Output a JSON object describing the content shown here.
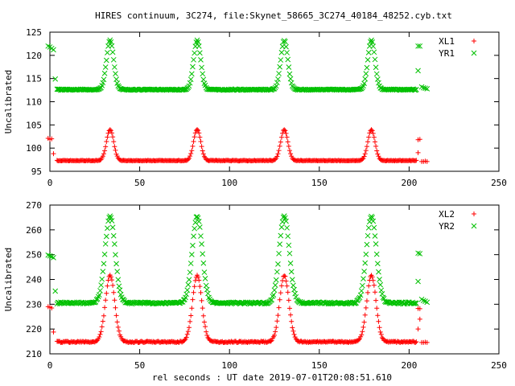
{
  "chart_data": {
    "title": "HIRES continuum, 3C274, file:Skynet_58665_3C274_40184_48252.cyb.txt",
    "xlabel": "rel seconds : UT date 2019-07-01T20:08:51.610",
    "panels": [
      {
        "type": "scatter",
        "ylabel": "Uncalibrated",
        "xlim": [
          0,
          250
        ],
        "ylim": [
          95,
          125
        ],
        "xticks": [
          0,
          50,
          100,
          150,
          200,
          250
        ],
        "yticks": [
          95,
          100,
          105,
          110,
          115,
          120,
          125
        ],
        "legend_position": "top-right",
        "series": [
          {
            "name": "XL1",
            "marker": "+",
            "color": "#ff0000",
            "baseline": 97.3,
            "peak": 104.0,
            "peak_width": 2.0,
            "peaks_x": [
              33.5,
              82,
              130.5,
              179
            ],
            "x_start": 4,
            "x_end": 204,
            "points": [
              [
                -1,
                102.1
              ],
              [
                0,
                101.9
              ],
              [
                1,
                102.0
              ],
              [
                2,
                98.8
              ],
              [
                205,
                101.8
              ],
              [
                206,
                101.9
              ],
              [
                205,
                99
              ],
              [
                207,
                97.1
              ],
              [
                208,
                97.1
              ],
              [
                209,
                97.2
              ],
              [
                210,
                97.1
              ]
            ]
          },
          {
            "name": "YR1",
            "marker": "x",
            "color": "#00c000",
            "baseline": 112.6,
            "peak": 123.2,
            "peak_width": 2.0,
            "peaks_x": [
              33.5,
              82,
              130.5,
              179
            ],
            "x_start": 4,
            "x_end": 204,
            "points": [
              [
                -1,
                122.0
              ],
              [
                0,
                121.8
              ],
              [
                1,
                121.5
              ],
              [
                2,
                121.2
              ],
              [
                3,
                114.9
              ],
              [
                205,
                116.7
              ],
              [
                206,
                122.0
              ],
              [
                205,
                122.0
              ],
              [
                207,
                113.2
              ],
              [
                208,
                113.0
              ],
              [
                209,
                112.9
              ],
              [
                210,
                112.8
              ]
            ]
          }
        ]
      },
      {
        "type": "scatter",
        "ylabel": "Uncalibrated",
        "xlim": [
          0,
          250
        ],
        "ylim": [
          210,
          270
        ],
        "xticks": [
          0,
          50,
          100,
          150,
          200,
          250
        ],
        "yticks": [
          210,
          220,
          230,
          240,
          250,
          260,
          270
        ],
        "legend_position": "top-right",
        "series": [
          {
            "name": "XL2",
            "marker": "+",
            "color": "#ff0000",
            "baseline": 214.8,
            "peak": 241.5,
            "peak_width": 2.6,
            "peaks_x": [
              33.5,
              82,
              130.5,
              179
            ],
            "x_start": 4,
            "x_end": 204,
            "points": [
              [
                -1,
                229.0
              ],
              [
                0,
                228.8
              ],
              [
                1,
                228.5
              ],
              [
                2,
                218.8
              ],
              [
                205,
                228.3
              ],
              [
                206,
                228.2
              ],
              [
                205,
                220.0
              ],
              [
                206,
                224.0
              ],
              [
                207,
                214.6
              ],
              [
                208,
                214.6
              ],
              [
                209,
                214.7
              ],
              [
                210,
                214.6
              ]
            ]
          },
          {
            "name": "YR2",
            "marker": "x",
            "color": "#00c000",
            "baseline": 230.5,
            "peak": 265.5,
            "peak_width": 2.8,
            "peaks_x": [
              33.5,
              82,
              130.5,
              179
            ],
            "x_start": 4,
            "x_end": 204,
            "points": [
              [
                -1,
                249.8
              ],
              [
                0,
                249.5
              ],
              [
                1,
                249.2
              ],
              [
                2,
                248.8
              ],
              [
                3,
                235.3
              ],
              [
                205,
                239.2
              ],
              [
                206,
                250.4
              ],
              [
                205,
                250.6
              ],
              [
                207,
                232.0
              ],
              [
                208,
                231.5
              ],
              [
                209,
                231.2
              ],
              [
                210,
                230.8
              ]
            ]
          }
        ]
      }
    ]
  }
}
